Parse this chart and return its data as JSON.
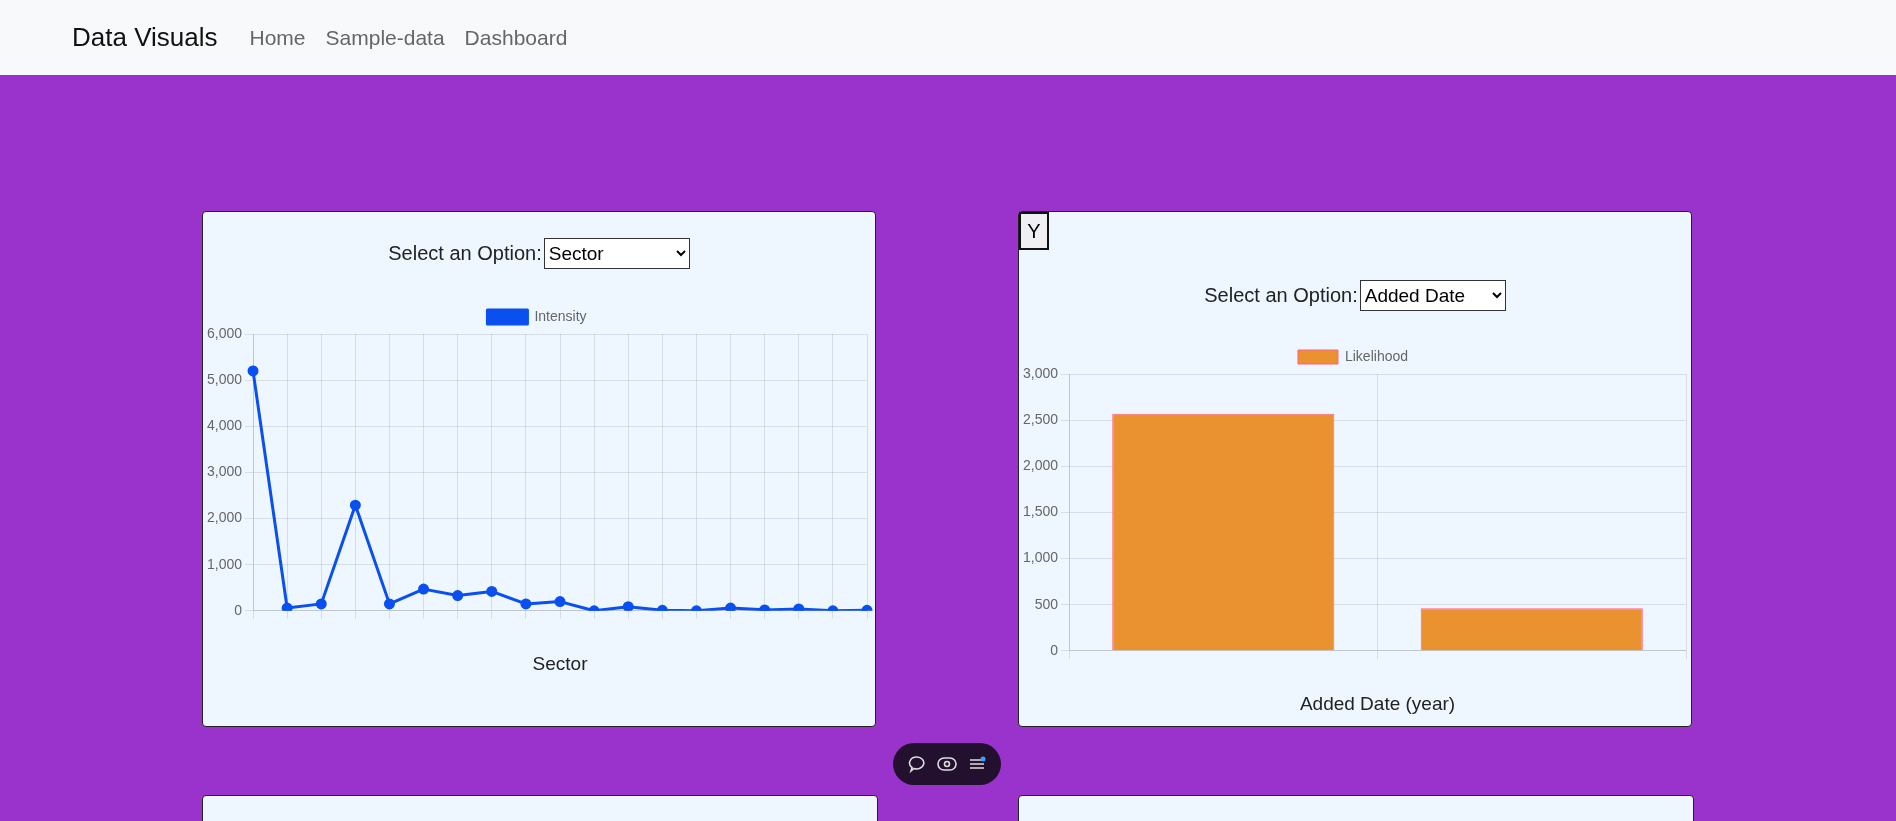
{
  "chart_data": [
    {
      "type": "other",
      "annotations": [
        "Data Visuals",
        "Home",
        "Sample-data",
        "Dashboard"
      ]
    },
    {
      "type": "line",
      "xlabel": "Sector",
      "annotations": [
        "Select an Option:",
        "Sector"
      ],
      "categories": [
        null,
        null,
        null,
        null,
        null,
        null,
        null,
        null,
        null,
        null,
        null,
        null,
        null,
        null,
        null,
        null,
        null,
        null,
        null
      ],
      "series": [
        {
          "name": "Intensity",
          "color": "#0a4ff0",
          "values": [
            5200,
            60,
            150,
            2290,
            150,
            470,
            330,
            420,
            150,
            200,
            0,
            90,
            10,
            0,
            60,
            20,
            40,
            0,
            10
          ]
        }
      ],
      "ylim": [
        0,
        6000
      ],
      "yticks": [
        {
          "value": 0,
          "label": "0"
        },
        {
          "value": 1000,
          "label": "1,000"
        },
        {
          "value": 2000,
          "label": "2,000"
        },
        {
          "value": 3000,
          "label": "3,000"
        },
        {
          "value": 4000,
          "label": "4,000"
        },
        {
          "value": 5000,
          "label": "5,000"
        },
        {
          "value": 6000,
          "label": "6,000"
        }
      ],
      "grid": true,
      "legend": "top",
      "marker": "circle"
    },
    {
      "type": "bar",
      "xlabel": "Added Date (year)",
      "annotations": [
        "Y",
        "Select an Option:",
        "Added Date"
      ],
      "categories": [
        null,
        null
      ],
      "series": [
        {
          "name": "Likelihood",
          "color": "#eb9230",
          "values": [
            2570,
            460
          ]
        }
      ],
      "ylim": [
        0,
        3000
      ],
      "yticks": [
        {
          "value": 0,
          "label": "0"
        },
        {
          "value": 500,
          "label": "500"
        },
        {
          "value": 1000,
          "label": "1,000"
        },
        {
          "value": 1500,
          "label": "1,500"
        },
        {
          "value": 2000,
          "label": "2,000"
        },
        {
          "value": 2500,
          "label": "2,500"
        },
        {
          "value": 3000,
          "label": "3,000"
        }
      ],
      "grid": true,
      "legend": "top"
    }
  ]
}
